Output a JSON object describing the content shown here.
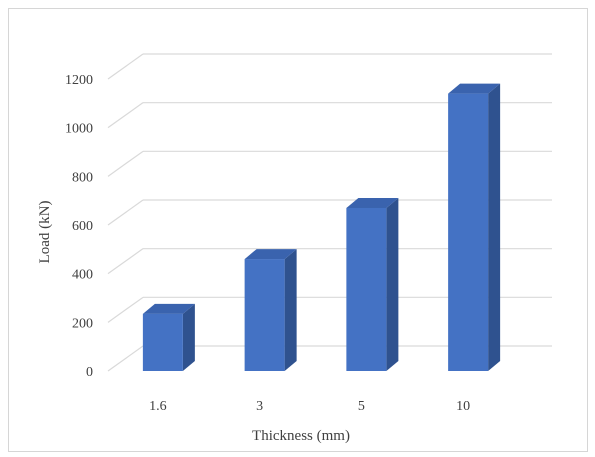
{
  "chart_data": {
    "type": "bar",
    "style": "3d-column",
    "categories": [
      "1.6",
      "3",
      "5",
      "10"
    ],
    "values": [
      235,
      460,
      670,
      1140
    ],
    "xlabel": "Thickness (mm)",
    "ylabel": "Load (kN)",
    "ylim": [
      0,
      1200
    ],
    "yticks": [
      "0",
      "200",
      "400",
      "600",
      "800",
      "1000",
      "1200"
    ],
    "grid": true,
    "legend": "none",
    "colors": {
      "bar_front": "#4472C4",
      "bar_side": "#2F528F",
      "bar_top": "#3A63AE",
      "grid": "#d9d9d9"
    }
  }
}
